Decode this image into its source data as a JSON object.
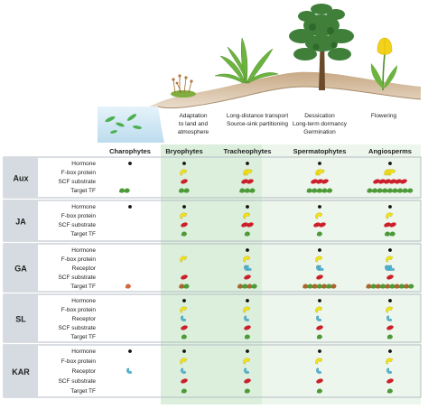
{
  "captions": [
    {
      "lines": [
        "Adaptation",
        "to land and",
        "atmosphere"
      ]
    },
    {
      "lines": [
        "Long-distance transport",
        "Source-sink partitioning"
      ]
    },
    {
      "lines": [
        "Dessication",
        "Long-term dormancy",
        "Germination"
      ]
    },
    {
      "lines": [
        "Flowering"
      ]
    }
  ],
  "lineages": [
    "Charophytes",
    "Bryophytes",
    "Tracheophytes",
    "Spermatophytes",
    "Angiosperms"
  ],
  "panels": [
    {
      "name": "Aux",
      "rows": [
        "Hormone",
        "F-box protein",
        "SCF substrate",
        "Target TF"
      ]
    },
    {
      "name": "JA",
      "rows": [
        "Hormone",
        "F-box protein",
        "SCF substrate",
        "Target TF"
      ]
    },
    {
      "name": "GA",
      "rows": [
        "Hormone",
        "F-box protein",
        "Receptor",
        "SCF substrate",
        "Target TF"
      ]
    },
    {
      "name": "SL",
      "rows": [
        "Hormone",
        "F-box protein",
        "Receptor",
        "SCF substrate",
        "Target TF"
      ]
    },
    {
      "name": "KAR",
      "rows": [
        "Hormone",
        "F-box protein",
        "Receptor",
        "SCF substrate",
        "Target TF"
      ]
    }
  ],
  "colors": {
    "panel_label_bg": "#d6dbe1",
    "panel_border": "#b4bcc4",
    "gradient_green": "#dcefdc",
    "hormone": "#111111",
    "fbox_yellow": "#f2e21a",
    "receptor_blue": "#55b5d4",
    "scf_red": "#cc1f2b",
    "tf_green": "#4c9a38",
    "charophyte_tf": "#d26a3a",
    "ground": "#cbb08e",
    "water": "#d3e9f5"
  }
}
